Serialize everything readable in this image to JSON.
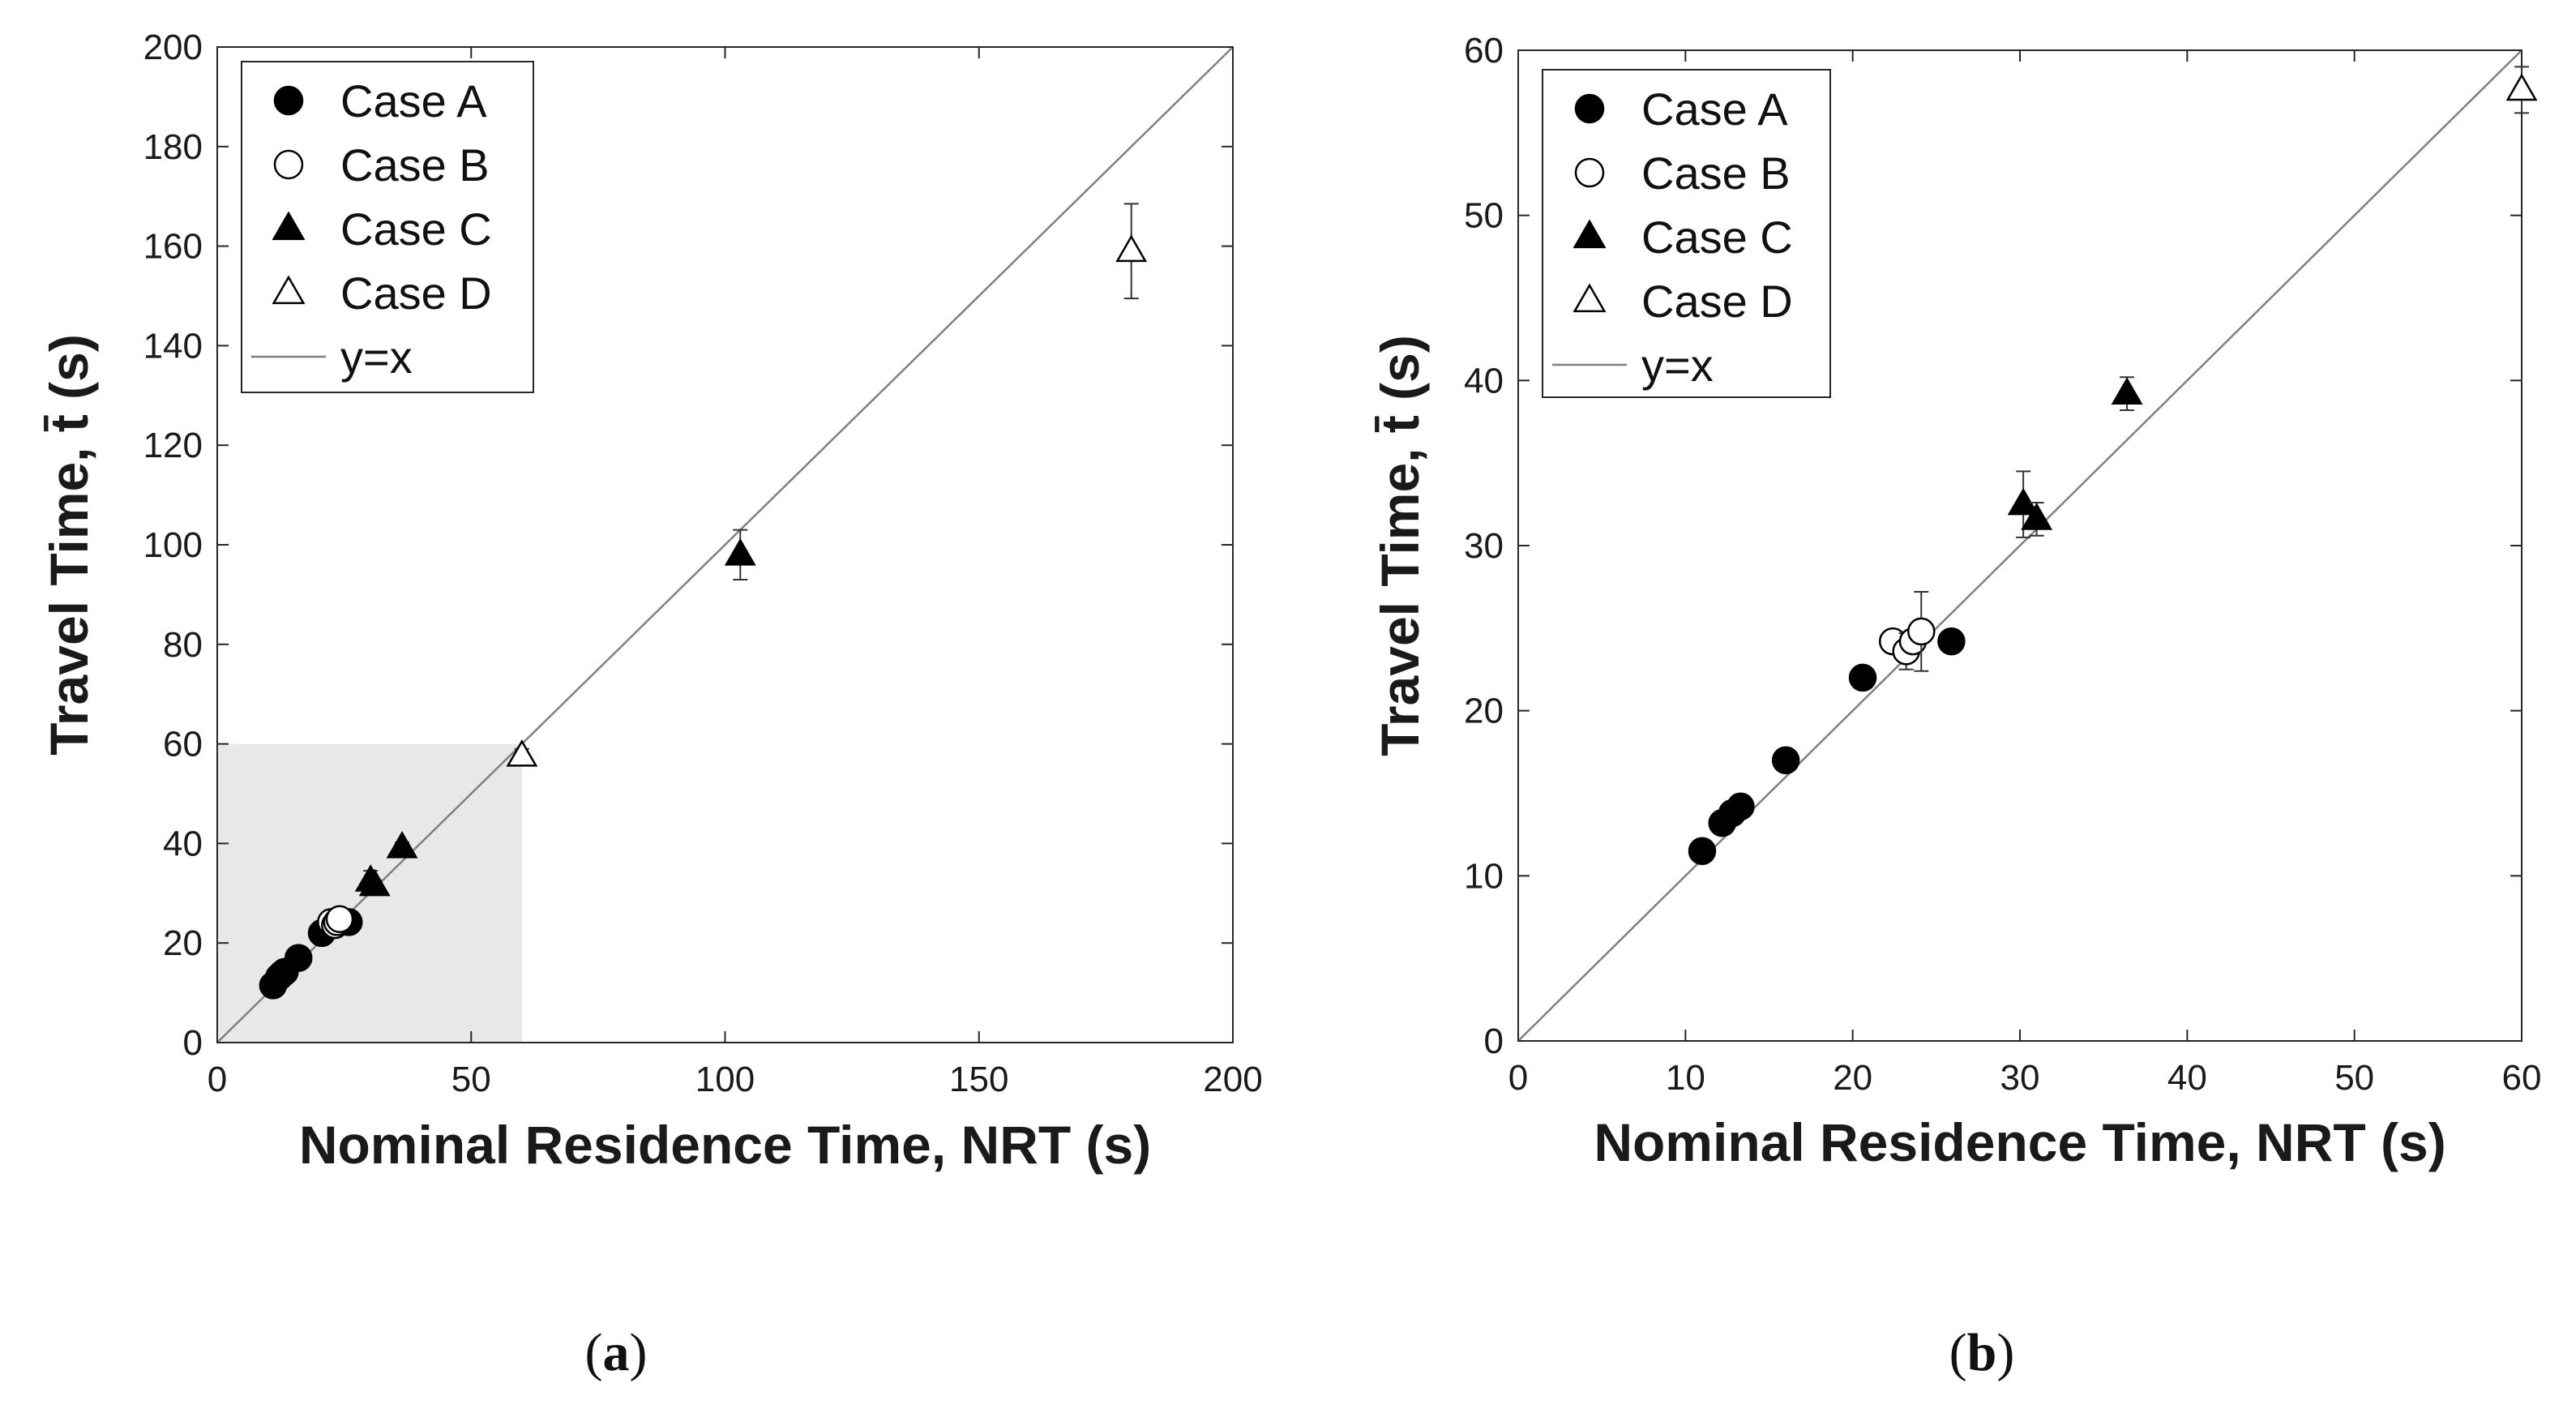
{
  "figure_labels": [
    {
      "paren_open": "(",
      "letter": "a",
      "paren_close": ")"
    },
    {
      "paren_open": "(",
      "letter": "b",
      "paren_close": ")"
    }
  ],
  "chart_data": [
    {
      "type": "scatter",
      "panel": "a",
      "xlabel": "Nominal Residence Time, NRT (s)",
      "ylabel": "Travel Time, t̄ (s)",
      "xlim": [
        0,
        200
      ],
      "ylim": [
        0,
        200
      ],
      "xticks": [
        0,
        50,
        100,
        150,
        200
      ],
      "yticks": [
        0,
        20,
        40,
        60,
        80,
        100,
        120,
        140,
        160,
        180,
        200
      ],
      "highlight_region": {
        "x": [
          0,
          60
        ],
        "y": [
          0,
          60
        ]
      },
      "legend_position": "top-left",
      "reference_line": {
        "name": "y=x",
        "color": "#808080"
      },
      "colors": {
        "filled": "#000000",
        "open": "#ffffff",
        "edge": "#000000",
        "region": "#e8e8e8"
      },
      "series": [
        {
          "name": "Case A",
          "marker": "circle",
          "fill": "filled",
          "points": [
            {
              "x": 11,
              "y": 11.5
            },
            {
              "x": 12.2,
              "y": 13.2
            },
            {
              "x": 12.8,
              "y": 13.8
            },
            {
              "x": 13.3,
              "y": 14.2
            },
            {
              "x": 16,
              "y": 17
            },
            {
              "x": 20.6,
              "y": 22
            },
            {
              "x": 25.9,
              "y": 24.2
            }
          ]
        },
        {
          "name": "Case B",
          "marker": "circle",
          "fill": "open",
          "points": [
            {
              "x": 22.4,
              "y": 24.2
            },
            {
              "x": 23.2,
              "y": 23.6
            },
            {
              "x": 23.6,
              "y": 24.2
            },
            {
              "x": 24.1,
              "y": 24.8
            }
          ]
        },
        {
          "name": "Case C",
          "marker": "triangle",
          "fill": "filled",
          "points": [
            {
              "x": 30.2,
              "y": 32.5,
              "err": 2
            },
            {
              "x": 31,
              "y": 31.6,
              "err": 1
            },
            {
              "x": 36.4,
              "y": 39.2,
              "err": 1
            },
            {
              "x": 103,
              "y": 98,
              "err": 5
            }
          ]
        },
        {
          "name": "Case D",
          "marker": "triangle",
          "fill": "open",
          "points": [
            {
              "x": 60,
              "y": 57.6,
              "err": 1.4
            },
            {
              "x": 180,
              "y": 159,
              "err": 9.5
            }
          ]
        }
      ]
    },
    {
      "type": "scatter",
      "panel": "b",
      "xlabel": "Nominal Residence Time, NRT (s)",
      "ylabel": "Travel Time, t̄ (s)",
      "xlim": [
        0,
        60
      ],
      "ylim": [
        0,
        60
      ],
      "xticks": [
        0,
        10,
        20,
        30,
        40,
        50,
        60
      ],
      "yticks": [
        0,
        10,
        20,
        30,
        40,
        50,
        60
      ],
      "legend_position": "top-left",
      "reference_line": {
        "name": "y=x",
        "color": "#808080"
      },
      "colors": {
        "filled": "#000000",
        "open": "#ffffff",
        "edge": "#000000"
      },
      "series": [
        {
          "name": "Case A",
          "marker": "circle",
          "fill": "filled",
          "points": [
            {
              "x": 11,
              "y": 11.5
            },
            {
              "x": 12.2,
              "y": 13.2
            },
            {
              "x": 12.8,
              "y": 13.8
            },
            {
              "x": 13.3,
              "y": 14.2
            },
            {
              "x": 16,
              "y": 17
            },
            {
              "x": 20.6,
              "y": 22
            },
            {
              "x": 25.9,
              "y": 24.2
            }
          ]
        },
        {
          "name": "Case B",
          "marker": "circle",
          "fill": "open",
          "points": [
            {
              "x": 22.4,
              "y": 24.2
            },
            {
              "x": 23.2,
              "y": 23.6,
              "err": 1.1
            },
            {
              "x": 23.6,
              "y": 24.2
            },
            {
              "x": 24.1,
              "y": 24.8,
              "err": 2.4
            }
          ]
        },
        {
          "name": "Case C",
          "marker": "triangle",
          "fill": "filled",
          "points": [
            {
              "x": 30.2,
              "y": 32.5,
              "err": 2
            },
            {
              "x": 31,
              "y": 31.6,
              "err": 1
            },
            {
              "x": 36.4,
              "y": 39.2,
              "err": 1
            }
          ]
        },
        {
          "name": "Case D",
          "marker": "triangle",
          "fill": "open",
          "points": [
            {
              "x": 60,
              "y": 57.6,
              "err": 1.4
            }
          ]
        }
      ]
    }
  ]
}
